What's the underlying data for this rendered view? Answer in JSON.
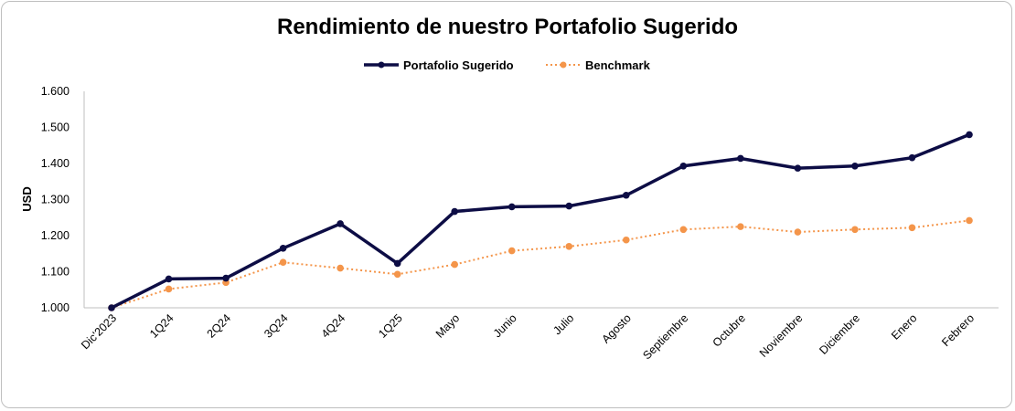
{
  "chart_data": {
    "type": "line",
    "title": "Rendimiento de nuestro Portafolio Sugerido",
    "xlabel": "",
    "ylabel": "USD",
    "ylim": [
      1000,
      1600
    ],
    "yticks": [
      "1.000",
      "1.100",
      "1.200",
      "1.300",
      "1.400",
      "1.500",
      "1.600"
    ],
    "grid": false,
    "legend_position": "top-center",
    "categories": [
      "Dic'2023",
      "1Q24",
      "2Q24",
      "3Q24",
      "4Q24",
      "1Q25",
      "Mayo",
      "Junio",
      "Julio",
      "Agosto",
      "Septiembre",
      "Octubre",
      "Noviembre",
      "Diciembre",
      "Enero",
      "Febrero"
    ],
    "series": [
      {
        "name": "Portafolio Sugerido",
        "color": "#0d0d45",
        "style": "solid",
        "values": [
          1000,
          1080,
          1082,
          1165,
          1233,
          1123,
          1267,
          1280,
          1282,
          1312,
          1393,
          1414,
          1387,
          1393,
          1416,
          1480
        ]
      },
      {
        "name": "Benchmark",
        "color": "#f4954a",
        "style": "dotted",
        "values": [
          1000,
          1052,
          1070,
          1126,
          1110,
          1093,
          1120,
          1158,
          1170,
          1188,
          1217,
          1225,
          1210,
          1217,
          1222,
          1242
        ]
      }
    ]
  }
}
